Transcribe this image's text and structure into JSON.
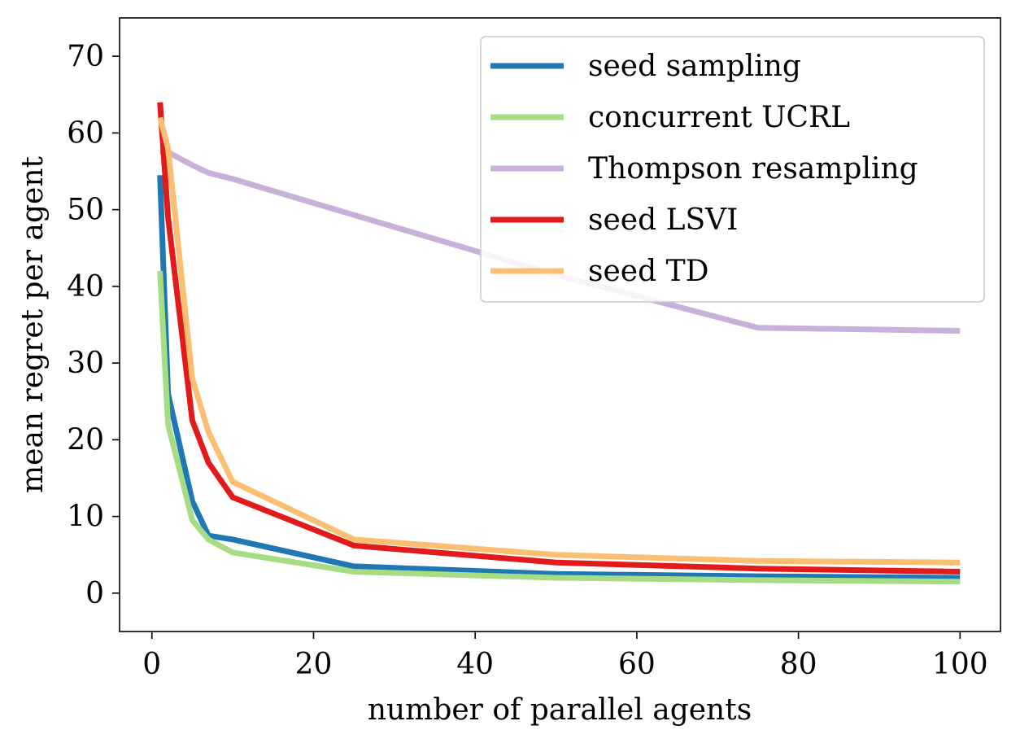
{
  "chart_data": {
    "type": "line",
    "title": "",
    "xlabel": "number of parallel agents",
    "ylabel": "mean regret per agent",
    "xlim": [
      -4,
      105
    ],
    "ylim": [
      -5,
      75
    ],
    "xticks": [
      0,
      20,
      40,
      60,
      80,
      100
    ],
    "yticks": [
      0,
      10,
      20,
      30,
      40,
      50,
      60,
      70
    ],
    "grid": false,
    "legend_position": "top-right",
    "series": [
      {
        "name": "seed sampling",
        "color": "#1f77b4",
        "x": [
          1,
          2,
          5,
          7,
          10,
          25,
          50,
          75,
          100
        ],
        "y": [
          54.5,
          26,
          12,
          7.5,
          7,
          3.5,
          2.5,
          2.2,
          2.0
        ]
      },
      {
        "name": "concurrent UCRL",
        "color": "#a6dc84",
        "x": [
          1,
          2,
          5,
          7,
          10,
          25,
          50,
          75,
          100
        ],
        "y": [
          42,
          22,
          9.5,
          7,
          5.3,
          2.8,
          2.0,
          1.7,
          1.5
        ]
      },
      {
        "name": "Thompson resampling",
        "color": "#c9b0d8",
        "x": [
          1,
          2,
          5,
          7,
          10,
          25,
          50,
          75,
          100
        ],
        "y": [
          57.5,
          57.5,
          55.8,
          54.8,
          54,
          49.3,
          41.5,
          34.6,
          34.2
        ]
      },
      {
        "name": "seed LSVI",
        "color": "#e31a1c",
        "x": [
          1,
          2,
          5,
          7,
          10,
          25,
          50,
          75,
          100
        ],
        "y": [
          64,
          49,
          22.5,
          17,
          12.5,
          6.2,
          4.0,
          3.2,
          2.8
        ]
      },
      {
        "name": "seed TD",
        "color": "#fbbf72",
        "x": [
          1,
          2,
          5,
          7,
          10,
          25,
          50,
          75,
          100
        ],
        "y": [
          62,
          58,
          28,
          21,
          14.5,
          7.0,
          5.0,
          4.2,
          4.0
        ]
      }
    ]
  }
}
